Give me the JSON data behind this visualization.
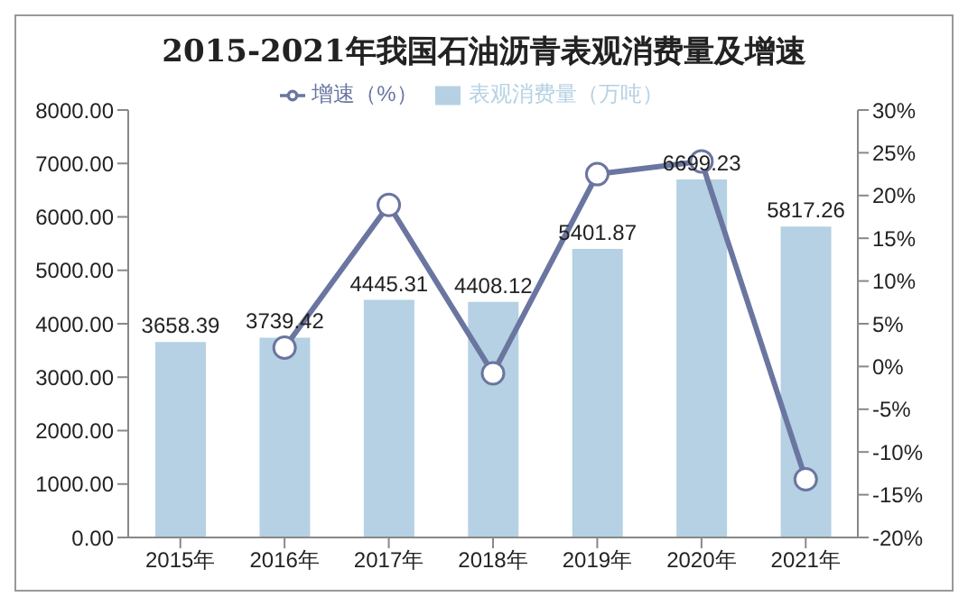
{
  "chart_data": {
    "type": "bar",
    "title": "2015-2021年我国石油沥青表观消费量及增速",
    "categories": [
      "2015年",
      "2016年",
      "2017年",
      "2018年",
      "2019年",
      "2020年",
      "2021年"
    ],
    "series": [
      {
        "name": "表观消费量（万吨）",
        "color": "#b5d1e3",
        "values": [
          3658.39,
          3739.42,
          4445.31,
          4408.12,
          5401.87,
          6699.23,
          5817.26
        ],
        "value_labels": [
          "3658.39",
          "3739.42",
          "4445.31",
          "4408.12",
          "5401.87",
          "6699.23",
          "5817.26"
        ]
      },
      {
        "name": "增速（%）",
        "type": "line",
        "axis": "y2",
        "color": "#6a76a0",
        "values": [
          null,
          2.2,
          18.9,
          -0.8,
          22.5,
          24.0,
          -13.2
        ]
      }
    ],
    "ylim": [
      0,
      8000
    ],
    "yticks": [
      {
        "value": 0,
        "label": "0.00"
      },
      {
        "value": 1000,
        "label": "1000.00"
      },
      {
        "value": 2000,
        "label": "2000.00"
      },
      {
        "value": 3000,
        "label": "3000.00"
      },
      {
        "value": 4000,
        "label": "4000.00"
      },
      {
        "value": 5000,
        "label": "5000.00"
      },
      {
        "value": 6000,
        "label": "6000.00"
      },
      {
        "value": 7000,
        "label": "7000.00"
      },
      {
        "value": 8000,
        "label": "8000.00"
      }
    ],
    "y2lim": [
      -20,
      30
    ],
    "y2ticks": [
      {
        "value": -20,
        "label": "-20%"
      },
      {
        "value": -15,
        "label": "-15%"
      },
      {
        "value": -10,
        "label": "-10%"
      },
      {
        "value": -5,
        "label": "-5%"
      },
      {
        "value": 0,
        "label": "0%"
      },
      {
        "value": 5,
        "label": "5%"
      },
      {
        "value": 10,
        "label": "10%"
      },
      {
        "value": 15,
        "label": "15%"
      },
      {
        "value": 20,
        "label": "20%"
      },
      {
        "value": 25,
        "label": "25%"
      },
      {
        "value": 30,
        "label": "30%"
      }
    ],
    "grid": false,
    "legend": "top",
    "marker": "circle",
    "line_style": "solid"
  }
}
